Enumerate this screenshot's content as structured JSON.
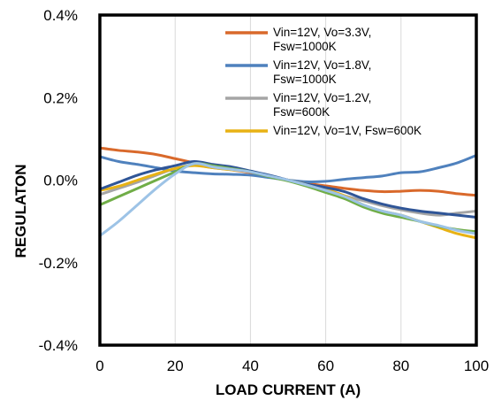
{
  "chart_data": {
    "type": "line",
    "xlabel": "LOAD CURRENT (A)",
    "ylabel": "REGULATON",
    "xlim": [
      0,
      100
    ],
    "ylim": [
      -0.4,
      0.4
    ],
    "x_ticks": [
      "0",
      "20",
      "40",
      "60",
      "80",
      "100"
    ],
    "y_ticks": [
      "0.4%",
      "0.2%",
      "0.0%",
      "-0.2%",
      "-0.4%"
    ],
    "grid": "vertical",
    "legend_position": "top-right",
    "series": [
      {
        "name": "Vin=12V, Vo=3.3V, Fsw=1000K",
        "legend_lines": [
          "Vin=12V, Vo=3.3V,",
          "Fsw=1000K"
        ],
        "color": "#D9692B",
        "x": [
          0,
          5,
          10,
          15,
          20,
          25,
          30,
          35,
          40,
          45,
          50,
          55,
          60,
          65,
          70,
          75,
          80,
          85,
          90,
          95,
          100
        ],
        "y": [
          0.078,
          0.072,
          0.068,
          0.062,
          0.052,
          0.042,
          0.032,
          0.025,
          0.018,
          0.01,
          0.0,
          -0.008,
          -0.014,
          -0.02,
          -0.025,
          -0.028,
          -0.027,
          -0.025,
          -0.027,
          -0.033,
          -0.037
        ]
      },
      {
        "name": "Vin=12V, Vo=1.8V, Fsw=1000K",
        "legend_lines": [
          "Vin=12V, Vo=1.8V,",
          "Fsw=1000K"
        ],
        "color": "#4F81BD",
        "x": [
          0,
          5,
          10,
          15,
          20,
          25,
          30,
          35,
          40,
          45,
          50,
          55,
          60,
          65,
          70,
          75,
          80,
          85,
          90,
          95,
          100
        ],
        "y": [
          0.057,
          0.045,
          0.038,
          0.03,
          0.022,
          0.018,
          0.015,
          0.014,
          0.012,
          0.006,
          0.0,
          -0.004,
          -0.003,
          0.002,
          0.006,
          0.01,
          0.018,
          0.02,
          0.03,
          0.042,
          0.06
        ]
      },
      {
        "name": "Vin=12V, Vo=1.2V, Fsw=600K",
        "legend_lines": [
          "Vin=12V, Vo=1.2V,",
          "Fsw=600K"
        ],
        "color": "#A5A5A5",
        "x": [
          0,
          5,
          10,
          15,
          20,
          25,
          30,
          35,
          40,
          45,
          50,
          55,
          60,
          65,
          70,
          75,
          80,
          85,
          90,
          95,
          100
        ],
        "y": [
          -0.035,
          -0.02,
          -0.005,
          0.012,
          0.028,
          0.036,
          0.03,
          0.025,
          0.02,
          0.01,
          0.0,
          -0.012,
          -0.025,
          -0.038,
          -0.05,
          -0.062,
          -0.072,
          -0.08,
          -0.085,
          -0.08,
          -0.075
        ]
      },
      {
        "name": "Vin=12V, Vo=1V, Fsw=600K",
        "legend_lines": [
          "Vin=12V, Vo=1V, Fsw=600K"
        ],
        "color": "#E8B214",
        "x": [
          0,
          5,
          10,
          15,
          20,
          25,
          30,
          35,
          40,
          45,
          50,
          55,
          60,
          65,
          70,
          75,
          80,
          85,
          90,
          95,
          100
        ],
        "y": [
          -0.025,
          -0.015,
          0.0,
          0.015,
          0.028,
          0.035,
          0.03,
          0.025,
          0.02,
          0.01,
          0.0,
          -0.01,
          -0.022,
          -0.038,
          -0.06,
          -0.075,
          -0.085,
          -0.1,
          -0.115,
          -0.13,
          -0.14
        ]
      },
      {
        "name": "",
        "legend_lines": [],
        "color": "#2F5597",
        "x": [
          0,
          5,
          10,
          15,
          20,
          25,
          30,
          35,
          40,
          45,
          50,
          55,
          60,
          65,
          70,
          75,
          80,
          85,
          90,
          95,
          100
        ],
        "y": [
          -0.022,
          -0.005,
          0.012,
          0.025,
          0.035,
          0.045,
          0.038,
          0.032,
          0.022,
          0.012,
          0.0,
          -0.01,
          -0.018,
          -0.028,
          -0.045,
          -0.058,
          -0.068,
          -0.075,
          -0.08,
          -0.085,
          -0.09
        ]
      },
      {
        "name": "",
        "legend_lines": [],
        "color": "#70AD47",
        "x": [
          0,
          5,
          10,
          15,
          20,
          25,
          30,
          35,
          40,
          45,
          50,
          55,
          60,
          65,
          70,
          75,
          80,
          85,
          90,
          95,
          100
        ],
        "y": [
          -0.06,
          -0.04,
          -0.02,
          0.0,
          0.02,
          0.04,
          0.035,
          0.028,
          0.02,
          0.008,
          -0.002,
          -0.015,
          -0.03,
          -0.045,
          -0.065,
          -0.08,
          -0.09,
          -0.1,
          -0.112,
          -0.12,
          -0.125
        ]
      },
      {
        "name": "",
        "legend_lines": [],
        "color": "#9DC3E6",
        "x": [
          0,
          5,
          10,
          15,
          20,
          25,
          30,
          35,
          40,
          45,
          50,
          55,
          60,
          65,
          70,
          75,
          80,
          85,
          90,
          95,
          100
        ],
        "y": [
          -0.135,
          -0.1,
          -0.06,
          -0.02,
          0.015,
          0.04,
          0.032,
          0.026,
          0.02,
          0.01,
          0.0,
          -0.012,
          -0.025,
          -0.04,
          -0.06,
          -0.075,
          -0.085,
          -0.1,
          -0.11,
          -0.122,
          -0.13
        ]
      }
    ]
  }
}
